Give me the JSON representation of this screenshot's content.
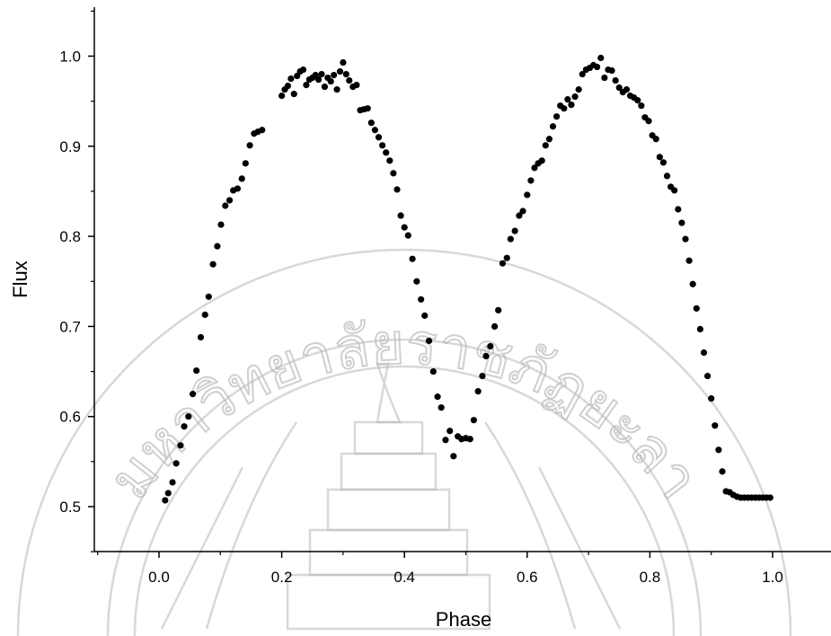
{
  "chart_data": {
    "type": "scatter",
    "xlabel": "Phase",
    "ylabel": "Flux",
    "xlim": [
      -0.1,
      1.12
    ],
    "ylim": [
      0.45,
      1.05
    ],
    "x_ticks": [
      0.0,
      0.2,
      0.4,
      0.6,
      0.8,
      1.0
    ],
    "x_tick_labels": [
      "0.0",
      "0.2",
      "0.4",
      "0.6",
      "0.8",
      "1.0"
    ],
    "y_ticks": [
      0.5,
      0.6,
      0.7,
      0.8,
      0.9,
      1.0
    ],
    "y_tick_labels": [
      "0.5",
      "0.6",
      "0.7",
      "0.8",
      "0.9",
      "1.0"
    ],
    "grid": false,
    "legend": "none",
    "marker_color": "#000000",
    "series": [
      {
        "x": [
          0.01,
          0.015,
          0.022,
          0.028,
          0.035,
          0.041,
          0.048,
          0.055,
          0.061,
          0.068,
          0.075,
          0.081,
          0.088,
          0.095,
          0.101,
          0.108,
          0.115,
          0.121,
          0.128,
          0.135,
          0.141,
          0.148,
          0.155,
          0.161,
          0.168,
          0.2,
          0.205,
          0.21,
          0.215,
          0.22,
          0.225,
          0.23,
          0.235,
          0.24,
          0.245,
          0.25,
          0.255,
          0.26,
          0.265,
          0.27,
          0.275,
          0.28,
          0.285,
          0.29,
          0.295,
          0.3,
          0.305,
          0.31,
          0.316,
          0.322,
          0.328,
          0.334,
          0.34,
          0.346,
          0.352,
          0.358,
          0.364,
          0.37,
          0.376,
          0.382,
          0.388,
          0.394,
          0.4,
          0.406,
          0.413,
          0.42,
          0.427,
          0.433,
          0.44,
          0.447,
          0.454,
          0.46,
          0.467,
          0.474,
          0.48,
          0.487,
          0.493,
          0.5,
          0.507,
          0.513,
          0.52,
          0.527,
          0.533,
          0.54,
          0.547,
          0.553,
          0.56,
          0.567,
          0.573,
          0.58,
          0.587,
          0.593,
          0.6,
          0.606,
          0.612,
          0.618,
          0.624,
          0.63,
          0.636,
          0.642,
          0.648,
          0.654,
          0.66,
          0.666,
          0.672,
          0.678,
          0.684,
          0.69,
          0.696,
          0.702,
          0.708,
          0.714,
          0.72,
          0.726,
          0.732,
          0.738,
          0.744,
          0.75,
          0.756,
          0.762,
          0.768,
          0.774,
          0.78,
          0.786,
          0.792,
          0.798,
          0.804,
          0.81,
          0.816,
          0.822,
          0.828,
          0.834,
          0.84,
          0.846,
          0.852,
          0.858,
          0.864,
          0.87,
          0.876,
          0.882,
          0.888,
          0.894,
          0.9,
          0.906,
          0.912,
          0.918,
          0.924,
          0.93,
          0.936,
          0.942,
          0.948,
          0.954,
          0.96,
          0.966,
          0.972,
          0.978,
          0.984,
          0.99,
          0.996
        ],
        "y": [
          0.507,
          0.515,
          0.527,
          0.548,
          0.568,
          0.589,
          0.6,
          0.625,
          0.651,
          0.688,
          0.713,
          0.733,
          0.769,
          0.789,
          0.813,
          0.834,
          0.84,
          0.851,
          0.853,
          0.864,
          0.881,
          0.901,
          0.914,
          0.916,
          0.918,
          0.956,
          0.963,
          0.967,
          0.975,
          0.958,
          0.978,
          0.983,
          0.985,
          0.968,
          0.974,
          0.976,
          0.979,
          0.974,
          0.98,
          0.966,
          0.976,
          0.972,
          0.979,
          0.963,
          0.983,
          0.993,
          0.98,
          0.973,
          0.966,
          0.968,
          0.94,
          0.941,
          0.942,
          0.926,
          0.918,
          0.91,
          0.901,
          0.893,
          0.884,
          0.87,
          0.852,
          0.823,
          0.81,
          0.801,
          0.775,
          0.75,
          0.73,
          0.712,
          0.684,
          0.65,
          0.622,
          0.61,
          0.574,
          0.584,
          0.556,
          0.578,
          0.575,
          0.576,
          0.575,
          0.596,
          0.628,
          0.645,
          0.667,
          0.678,
          0.7,
          0.718,
          0.77,
          0.776,
          0.797,
          0.806,
          0.823,
          0.828,
          0.846,
          0.862,
          0.876,
          0.881,
          0.884,
          0.901,
          0.908,
          0.922,
          0.933,
          0.945,
          0.942,
          0.952,
          0.946,
          0.955,
          0.963,
          0.98,
          0.985,
          0.987,
          0.99,
          0.988,
          0.998,
          0.976,
          0.985,
          0.984,
          0.973,
          0.965,
          0.96,
          0.963,
          0.956,
          0.954,
          0.951,
          0.945,
          0.932,
          0.928,
          0.912,
          0.908,
          0.888,
          0.882,
          0.867,
          0.855,
          0.851,
          0.83,
          0.815,
          0.797,
          0.773,
          0.747,
          0.72,
          0.697,
          0.671,
          0.645,
          0.62,
          0.59,
          0.563,
          0.539,
          0.517,
          0.516,
          0.513,
          0.511,
          0.51,
          0.51,
          0.51,
          0.51,
          0.51,
          0.51,
          0.51,
          0.51,
          0.51
        ]
      }
    ]
  },
  "watermark": {
    "text": "มหาวิทยาลัยราชภัฏยะลา"
  }
}
